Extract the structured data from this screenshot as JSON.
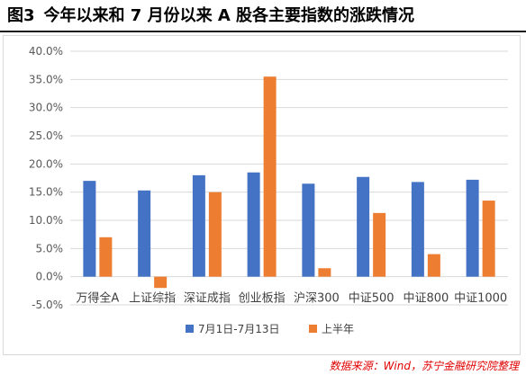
{
  "figure": {
    "number": "图3",
    "title": "今年以来和 7 月份以来 A 股各主要指数的涨跌情况"
  },
  "source_note": "数据来源：Wind，苏宁金融研究院整理",
  "colors": {
    "series_1": "#4472C4",
    "series_2": "#ED7D31",
    "grid": "#d9d9d9",
    "axis_text": "#595959"
  },
  "chart_data": {
    "type": "bar",
    "title": "",
    "xlabel": "",
    "ylabel": "",
    "categories": [
      "万得全A",
      "上证综指",
      "深证成指",
      "创业板指",
      "沪深300",
      "中证500",
      "中证800",
      "中证1000"
    ],
    "series": [
      {
        "name": "7月1日-7月13日",
        "values": [
          17.0,
          15.3,
          18.0,
          18.5,
          16.5,
          17.7,
          16.8,
          17.2
        ]
      },
      {
        "name": "上半年",
        "values": [
          7.0,
          -2.0,
          15.0,
          35.5,
          1.5,
          11.3,
          4.0,
          13.5
        ]
      }
    ],
    "ylim": [
      -5,
      40
    ],
    "yticks": [
      -5,
      0,
      5,
      10,
      15,
      20,
      25,
      30,
      35,
      40
    ],
    "ytick_labels": [
      "-5.0%",
      "0.0%",
      "5.0%",
      "10.0%",
      "15.0%",
      "20.0%",
      "25.0%",
      "30.0%",
      "35.0%",
      "40.0%"
    ],
    "grid": true,
    "legend_position": "bottom"
  }
}
